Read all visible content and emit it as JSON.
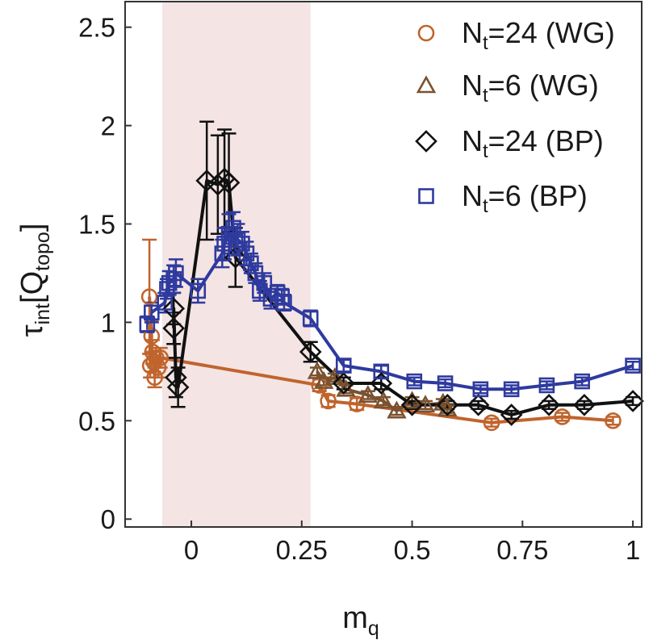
{
  "chart_data": {
    "type": "scatter",
    "xlabel": {
      "main": "m",
      "sub": "q"
    },
    "ylabel": {
      "main": "τ",
      "sub1": "int",
      "mid": "[Q",
      "sub2": "topo",
      "end": "]"
    },
    "xlim": [
      -0.15,
      1.02
    ],
    "ylim": [
      -0.04,
      2.63
    ],
    "xticks": [
      0,
      0.25,
      0.5,
      0.75,
      1
    ],
    "xtick_labels": [
      "0",
      "0.25",
      "0.5",
      "0.75",
      "1"
    ],
    "yticks": [
      0,
      0.5,
      1,
      1.5,
      2,
      2.5
    ],
    "ytick_labels": [
      "0",
      "0.5",
      "1",
      "1.5",
      "2",
      "2.5"
    ],
    "shaded_region": {
      "x": [
        -0.066,
        0.27
      ],
      "color": "#f4e4e4"
    },
    "grid": false,
    "legend_position": "top-right",
    "series": [
      {
        "name": {
          "main": "N",
          "sub": "t",
          "rest": "=24 (WG)"
        },
        "marker": "circle",
        "color": "#c0642d",
        "line": true,
        "points": [
          [
            -0.095,
            1.13,
            0.29
          ],
          [
            -0.09,
            0.93,
            0.08
          ],
          [
            -0.093,
            0.78,
            0.06
          ],
          [
            -0.088,
            0.85,
            0.06
          ],
          [
            -0.085,
            0.8,
            0.05
          ],
          [
            -0.083,
            0.72,
            0.05
          ],
          [
            -0.08,
            0.82,
            0.05
          ],
          [
            -0.075,
            0.77,
            0.05
          ],
          [
            -0.07,
            0.82,
            0.05
          ],
          [
            0.29,
            0.68,
            0.03
          ],
          [
            0.31,
            0.6,
            0.03
          ],
          [
            0.375,
            0.585,
            0.03
          ],
          [
            0.68,
            0.49,
            0.02
          ],
          [
            0.84,
            0.52,
            0.02
          ],
          [
            0.955,
            0.5,
            0.02
          ]
        ]
      },
      {
        "name": {
          "main": "N",
          "sub": "t",
          "rest": "=6 (WG)"
        },
        "marker": "triangle",
        "color": "#7a5230",
        "line": true,
        "points": [
          [
            0.285,
            0.75,
            0.02
          ],
          [
            0.3,
            0.7,
            0.02
          ],
          [
            0.325,
            0.72,
            0.02
          ],
          [
            0.35,
            0.66,
            0.02
          ],
          [
            0.4,
            0.63,
            0.02
          ],
          [
            0.435,
            0.6,
            0.02
          ],
          [
            0.465,
            0.55,
            0.02
          ],
          [
            0.5,
            0.6,
            0.02
          ],
          [
            0.53,
            0.58,
            0.02
          ],
          [
            0.57,
            0.59,
            0.02
          ],
          [
            0.58,
            0.56,
            0.02
          ]
        ]
      },
      {
        "name": {
          "main": "N",
          "sub": "t",
          "rest": "=24 (BP)"
        },
        "marker": "diamond",
        "color": "#111111",
        "line": true,
        "points": [
          [
            -0.04,
            0.97,
            0.08
          ],
          [
            -0.04,
            1.07,
            0.08
          ],
          [
            -0.035,
            0.72,
            0.1
          ],
          [
            -0.03,
            0.67,
            0.1
          ],
          [
            0.035,
            1.72,
            0.3
          ],
          [
            0.06,
            1.7,
            0.25
          ],
          [
            0.075,
            1.73,
            0.25
          ],
          [
            0.085,
            1.71,
            0.25
          ],
          [
            0.1,
            1.33,
            0.15
          ],
          [
            0.27,
            0.85,
            0.05
          ],
          [
            0.345,
            0.69,
            0.03
          ],
          [
            0.43,
            0.69,
            0.03
          ],
          [
            0.5,
            0.58,
            0.02
          ],
          [
            0.58,
            0.58,
            0.02
          ],
          [
            0.65,
            0.58,
            0.02
          ],
          [
            0.725,
            0.53,
            0.02
          ],
          [
            0.81,
            0.58,
            0.02
          ],
          [
            0.89,
            0.58,
            0.02
          ],
          [
            1.0,
            0.6,
            0.02
          ]
        ]
      },
      {
        "name": {
          "main": "N",
          "sub": "t",
          "rest": "=6 (BP)"
        },
        "marker": "square",
        "color": "#2e3a9e",
        "line": true,
        "points": [
          [
            -0.1,
            0.99,
            0.04
          ],
          [
            -0.09,
            1.05,
            0.05
          ],
          [
            -0.06,
            1.1,
            0.05
          ],
          [
            -0.055,
            1.17,
            0.05
          ],
          [
            -0.05,
            1.2,
            0.06
          ],
          [
            -0.04,
            1.22,
            0.07
          ],
          [
            -0.035,
            1.25,
            0.07
          ],
          [
            0.015,
            1.16,
            0.06
          ],
          [
            0.07,
            1.35,
            0.07
          ],
          [
            0.075,
            1.4,
            0.08
          ],
          [
            0.085,
            1.45,
            0.1
          ],
          [
            0.095,
            1.48,
            0.08
          ],
          [
            0.105,
            1.42,
            0.08
          ],
          [
            0.115,
            1.4,
            0.06
          ],
          [
            0.125,
            1.35,
            0.06
          ],
          [
            0.135,
            1.3,
            0.05
          ],
          [
            0.145,
            1.25,
            0.05
          ],
          [
            0.155,
            1.16,
            0.05
          ],
          [
            0.165,
            1.2,
            0.05
          ],
          [
            0.18,
            1.12,
            0.05
          ],
          [
            0.195,
            1.15,
            0.04
          ],
          [
            0.205,
            1.13,
            0.04
          ],
          [
            0.21,
            1.1,
            0.04
          ],
          [
            0.27,
            1.02,
            0.04
          ],
          [
            0.345,
            0.78,
            0.03
          ],
          [
            0.43,
            0.75,
            0.03
          ],
          [
            0.505,
            0.7,
            0.02
          ],
          [
            0.575,
            0.69,
            0.02
          ],
          [
            0.655,
            0.66,
            0.02
          ],
          [
            0.725,
            0.66,
            0.02
          ],
          [
            0.805,
            0.68,
            0.02
          ],
          [
            0.885,
            0.7,
            0.02
          ],
          [
            1.0,
            0.78,
            0.02
          ]
        ]
      }
    ]
  }
}
